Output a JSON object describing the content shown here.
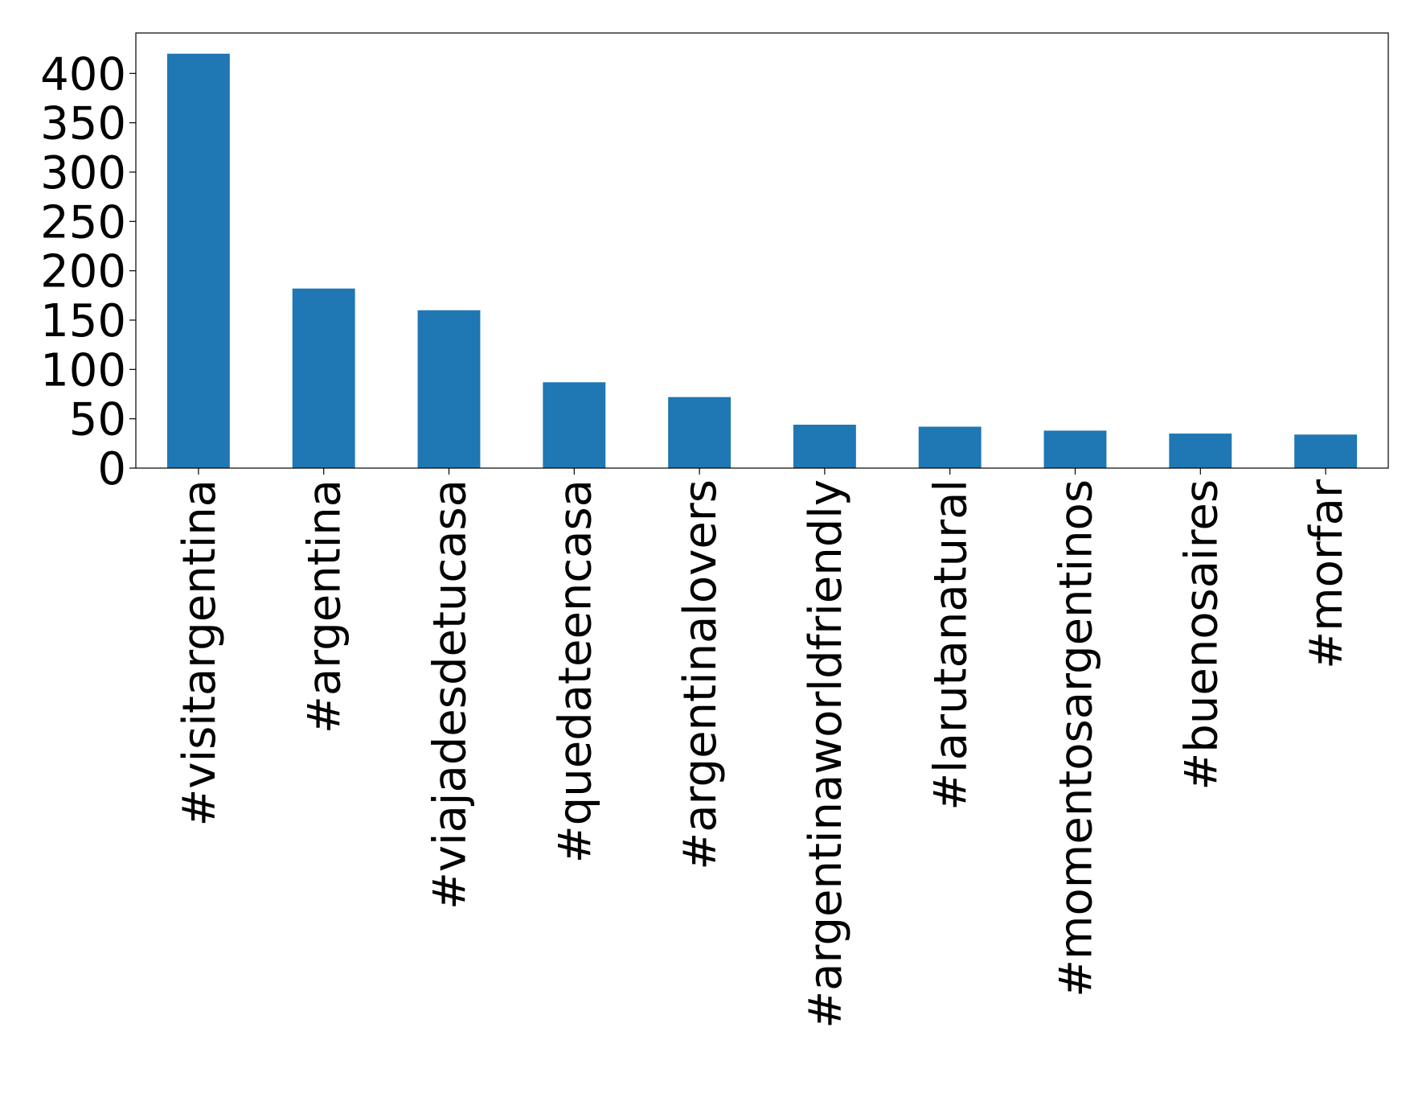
{
  "chart_data": {
    "type": "bar",
    "categories": [
      "#visitargentina",
      "#argentina",
      "#viajadesdetucasa",
      "#quedateencasa",
      "#argentinalovers",
      "#argentinaworldfriendly",
      "#larutanatural",
      "#momentosargentinos",
      "#buenosaires",
      "#morfar"
    ],
    "values": [
      420,
      182,
      160,
      87,
      72,
      44,
      42,
      38,
      35,
      34
    ],
    "color": "#1f77b4",
    "ylim": [
      0,
      441
    ],
    "yticks": [
      0,
      50,
      100,
      150,
      200,
      250,
      300,
      350,
      400
    ],
    "grid": false
  }
}
